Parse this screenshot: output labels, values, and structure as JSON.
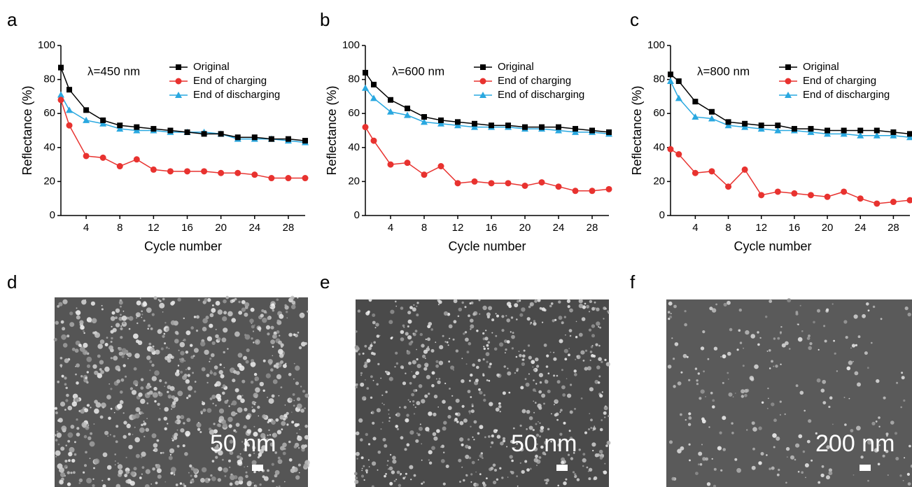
{
  "chart_data": [
    {
      "type": "line",
      "panel": "a",
      "annotation": "λ=450 nm",
      "xlabel": "Cycle number",
      "ylabel": "Reflectance (%)",
      "x": [
        1,
        2,
        4,
        6,
        8,
        10,
        12,
        14,
        16,
        18,
        20,
        22,
        24,
        26,
        28,
        30
      ],
      "xlim": [
        1,
        30
      ],
      "xticks": [
        4,
        8,
        12,
        16,
        20,
        24,
        28
      ],
      "ylim": [
        0,
        100
      ],
      "yticks": [
        0,
        20,
        40,
        60,
        80,
        100
      ],
      "series": [
        {
          "name": "Original",
          "color": "#000000",
          "marker": "square",
          "values": [
            87,
            74,
            62,
            56,
            53,
            52,
            51,
            50,
            49,
            48,
            48,
            46,
            46,
            45,
            45,
            44
          ]
        },
        {
          "name": "End of charging",
          "color": "#e8322f",
          "marker": "circle",
          "values": [
            68,
            53,
            35,
            34,
            29,
            33,
            27,
            26,
            26,
            26,
            25,
            25,
            24,
            22,
            22,
            22
          ]
        },
        {
          "name": "End of discharging",
          "color": "#29a8e0",
          "marker": "triangle",
          "values": [
            71,
            62,
            56,
            54,
            51,
            50,
            50,
            49,
            49,
            49,
            48,
            45,
            45,
            45,
            44,
            43
          ]
        }
      ]
    },
    {
      "type": "line",
      "panel": "b",
      "annotation": "λ=600 nm",
      "xlabel": "Cycle number",
      "ylabel": "Reflectance (%)",
      "x": [
        1,
        2,
        4,
        6,
        8,
        10,
        12,
        14,
        16,
        18,
        20,
        22,
        24,
        26,
        28,
        30
      ],
      "xlim": [
        1,
        30
      ],
      "xticks": [
        4,
        8,
        12,
        16,
        20,
        24,
        28
      ],
      "ylim": [
        0,
        100
      ],
      "yticks": [
        0,
        20,
        40,
        60,
        80,
        100
      ],
      "series": [
        {
          "name": "Original",
          "color": "#000000",
          "marker": "square",
          "values": [
            84,
            77,
            68,
            63,
            58,
            56,
            55,
            54,
            53,
            53,
            52,
            52,
            52,
            51,
            50,
            49
          ]
        },
        {
          "name": "End of charging",
          "color": "#e8322f",
          "marker": "circle",
          "values": [
            52,
            44,
            30,
            31,
            24,
            29,
            19,
            20,
            19,
            19,
            17.5,
            19.5,
            17,
            14.5,
            14.5,
            15.5
          ]
        },
        {
          "name": "End of discharging",
          "color": "#29a8e0",
          "marker": "triangle",
          "values": [
            75,
            69,
            61,
            59,
            55,
            54,
            53,
            52,
            52,
            52,
            51,
            51,
            50,
            49,
            49,
            48
          ]
        }
      ]
    },
    {
      "type": "line",
      "panel": "c",
      "annotation": "λ=800 nm",
      "xlabel": "Cycle number",
      "ylabel": "Reflectance (%)",
      "x": [
        1,
        2,
        4,
        6,
        8,
        10,
        12,
        14,
        16,
        18,
        20,
        22,
        24,
        26,
        28,
        30
      ],
      "xlim": [
        1,
        30
      ],
      "xticks": [
        4,
        8,
        12,
        16,
        20,
        24,
        28
      ],
      "ylim": [
        0,
        100
      ],
      "yticks": [
        0,
        20,
        40,
        60,
        80,
        100
      ],
      "series": [
        {
          "name": "Original",
          "color": "#000000",
          "marker": "square",
          "values": [
            83,
            79,
            67,
            61,
            55,
            54,
            53,
            53,
            51,
            51,
            50,
            50,
            50,
            50,
            49,
            48
          ]
        },
        {
          "name": "End of charging",
          "color": "#e8322f",
          "marker": "circle",
          "values": [
            39,
            36,
            25,
            26,
            17,
            27,
            12,
            14,
            13,
            12,
            11,
            14,
            10,
            7,
            8,
            9
          ]
        },
        {
          "name": "End of discharging",
          "color": "#29a8e0",
          "marker": "triangle",
          "values": [
            79,
            69,
            58,
            57,
            53,
            52,
            51,
            50,
            50,
            49,
            48,
            48,
            47,
            47,
            47,
            46
          ]
        }
      ]
    }
  ],
  "images": [
    {
      "panel": "d",
      "scale_bar": "50 nm"
    },
    {
      "panel": "e",
      "scale_bar": "50 nm"
    },
    {
      "panel": "f",
      "scale_bar": "200 nm"
    }
  ]
}
